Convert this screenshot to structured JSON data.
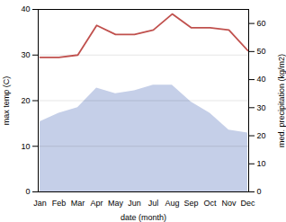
{
  "chart_data": {
    "type": "line",
    "categories": [
      "Jan",
      "Feb",
      "Mar",
      "Apr",
      "May",
      "Jun",
      "Jul",
      "Aug",
      "Sep",
      "Oct",
      "Nov",
      "Dec"
    ],
    "xlabel": "date (month)",
    "ylabel": "max temp (C)",
    "y2label": "med. precipitation (kg/m2)",
    "series": [
      {
        "type": "area",
        "axis": "y2",
        "color": "#c5cfe8",
        "values": [
          25,
          28,
          30,
          37,
          35,
          36,
          38,
          38,
          32,
          28,
          22,
          21
        ]
      },
      {
        "type": "line",
        "color": "#c0504d",
        "values": [
          29.5,
          29.5,
          30.0,
          36.5,
          34.5,
          34.5,
          35.5,
          39.0,
          36.0,
          36.0,
          35.5,
          31.0
        ]
      }
    ],
    "ylim": [
      0,
      40
    ],
    "yticks": [
      0,
      10,
      20,
      30,
      40
    ],
    "y2lim": [
      0,
      65
    ],
    "y2ticks": [
      0,
      10,
      20,
      30,
      40,
      50,
      60
    ],
    "grid": true
  }
}
